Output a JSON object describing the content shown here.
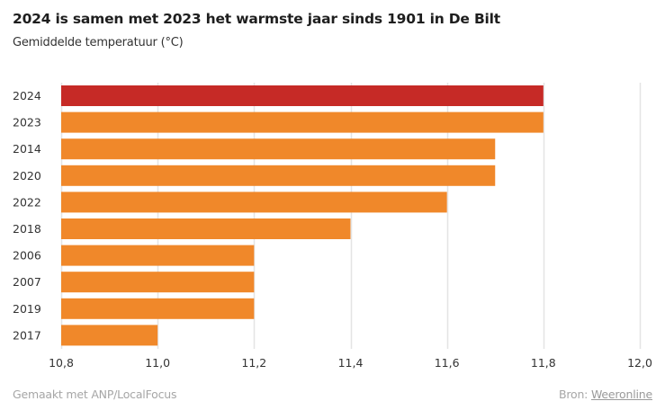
{
  "chart_data": {
    "type": "bar",
    "orientation": "horizontal",
    "title": "2024 is samen met 2023 het warmste jaar sinds 1901 in De Bilt",
    "subtitle": "Gemiddelde temperatuur (°C)",
    "xlabel": "",
    "ylabel": "",
    "categories": [
      "2024",
      "2023",
      "2014",
      "2020",
      "2022",
      "2018",
      "2006",
      "2007",
      "2019",
      "2017"
    ],
    "values": [
      11.8,
      11.8,
      11.7,
      11.7,
      11.6,
      11.4,
      11.2,
      11.2,
      11.2,
      11.0
    ],
    "highlight": [
      "2024"
    ],
    "xlim": [
      10.8,
      12.0
    ],
    "xticks": [
      10.8,
      11.0,
      11.2,
      11.4,
      11.6,
      11.8,
      12.0
    ],
    "xtick_labels": [
      "10,8",
      "11,0",
      "11,2",
      "11,4",
      "11,6",
      "11,8",
      "12,0"
    ],
    "grid": "vertical",
    "legend": "none",
    "colors": {
      "highlight": "#c62a26",
      "default": "#f0882a",
      "grid": "#e4e4e4"
    }
  },
  "footer": {
    "credit": "Gemaakt met ANP/LocalFocus",
    "source_label": "Bron:",
    "source_link": "Weeronline"
  }
}
